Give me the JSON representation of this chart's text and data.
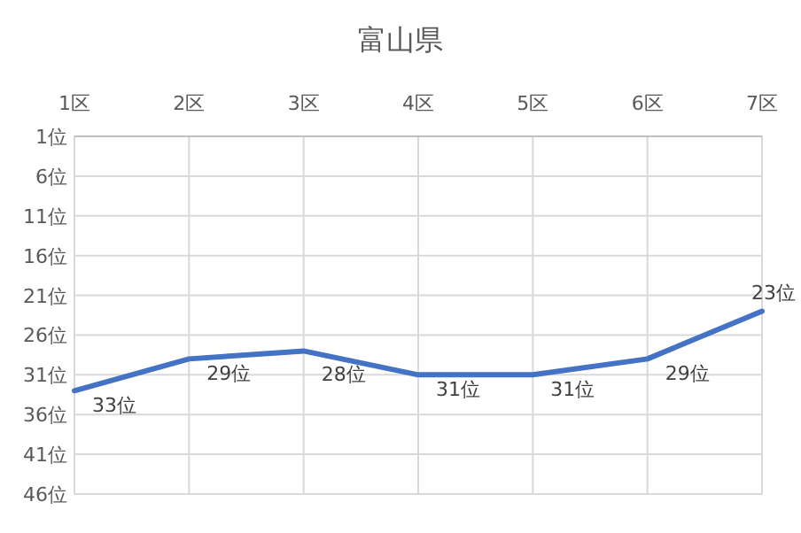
{
  "chart_data": {
    "type": "line",
    "title": "富山県",
    "categories": [
      "1区",
      "2区",
      "3区",
      "4区",
      "5区",
      "6区",
      "7区"
    ],
    "series": [
      {
        "color": "#4472c4",
        "values": [
          33,
          29,
          28,
          31,
          31,
          29,
          23
        ],
        "value_labels": [
          "33位",
          "29位",
          "28位",
          "31位",
          "31位",
          "29位",
          "23位"
        ]
      }
    ],
    "ylim": [
      46,
      1
    ],
    "yticks": [
      {
        "value": 1,
        "label": "1位"
      },
      {
        "value": 6,
        "label": "6位"
      },
      {
        "value": 11,
        "label": "11位"
      },
      {
        "value": 16,
        "label": "16位"
      },
      {
        "value": 21,
        "label": "21位"
      },
      {
        "value": 26,
        "label": "26位"
      },
      {
        "value": 31,
        "label": "31位"
      },
      {
        "value": 36,
        "label": "36位"
      },
      {
        "value": 41,
        "label": "41位"
      },
      {
        "value": 46,
        "label": "46位"
      }
    ],
    "grid": true,
    "marker": "none",
    "line_style": "solid"
  }
}
